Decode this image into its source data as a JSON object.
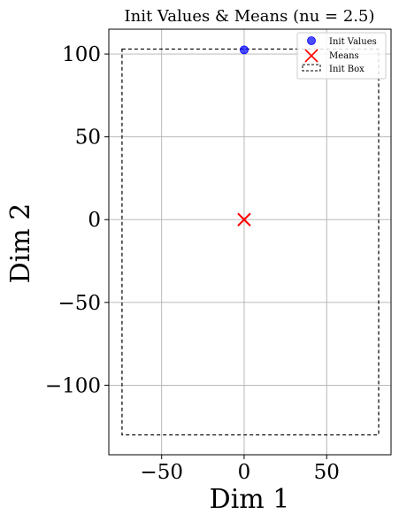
{
  "chart_data": {
    "type": "scatter",
    "title": "Init Values & Means (nu = 2.5)",
    "xlabel": "Dim 1",
    "ylabel": "Dim 2",
    "xlim": [
      -82,
      89
    ],
    "ylim": [
      -142,
      115
    ],
    "xticks": [
      -50,
      0,
      50
    ],
    "yticks": [
      -100,
      -50,
      0,
      50,
      100
    ],
    "xtick_labels": [
      "−50",
      "0",
      "50"
    ],
    "ytick_labels": [
      "−100",
      "−50",
      "0",
      "50",
      "100"
    ],
    "grid": true,
    "legend_placement": "top-right",
    "series": [
      {
        "name": "Init Values",
        "kind": "points",
        "color": "#0000ff",
        "points": [
          {
            "x": 0,
            "y": 102.5
          }
        ]
      },
      {
        "name": "Means",
        "kind": "x-markers",
        "color": "#ff0000",
        "points": [
          {
            "x": 0,
            "y": 0
          }
        ]
      },
      {
        "name": "Init Box",
        "kind": "dashed-rect",
        "color": "#000000",
        "x0": -74,
        "x1": 81.5,
        "y0": -130,
        "y1": 103
      }
    ]
  }
}
